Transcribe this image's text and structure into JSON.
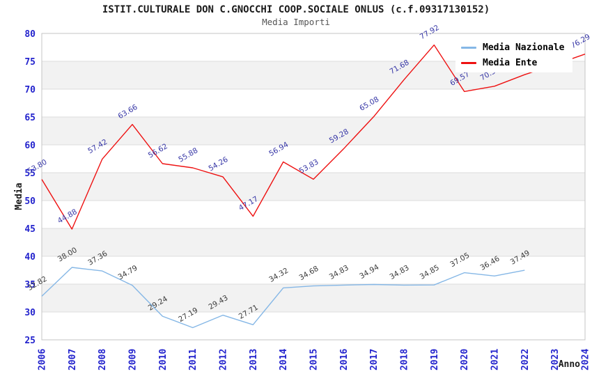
{
  "page": {
    "title": "ISTIT.CULTURALE DON C.GNOCCHI COOP.SOCIALE ONLUS (c.f.09317130152)",
    "subtitle": "Media Importi"
  },
  "legend": {
    "items": [
      {
        "label": "Media Nazionale",
        "color": "#85b7e6"
      },
      {
        "label": "Media Ente",
        "color": "#ee1111"
      }
    ]
  },
  "chart_data": {
    "type": "line",
    "title": "ISTIT.CULTURALE DON C.GNOCCHI COOP.SOCIALE ONLUS (c.f.09317130152)",
    "subtitle": "Media Importi",
    "xlabel": "Anno",
    "ylabel": "Media",
    "ylim": [
      25,
      80
    ],
    "ytick_step": 5,
    "grid": "horizontal-lines-with-alternating-bands",
    "legend_position": "top-right-inside",
    "colors": {
      "band": "#f2f2f2",
      "gridline": "#dcdcdc",
      "border": "#c4c4c4",
      "tick_label": "#2323cd"
    },
    "categories": [
      "2006",
      "2007",
      "2008",
      "2009",
      "2010",
      "2011",
      "2012",
      "2013",
      "2014",
      "2015",
      "2016",
      "2017",
      "2018",
      "2019",
      "2020",
      "2021",
      "2022",
      "2023",
      "2024"
    ],
    "series": [
      {
        "name": "Media Nazionale",
        "color": "#85b7e6",
        "label_color": "#3a3a3a",
        "values": [
          32.82,
          38.0,
          37.36,
          34.79,
          29.24,
          27.19,
          29.43,
          27.71,
          34.32,
          34.68,
          34.83,
          34.94,
          34.83,
          34.85,
          37.05,
          36.46,
          37.49
        ],
        "labels": [
          "32.82",
          "38.00",
          "37.36",
          "34.79",
          "29.24",
          "27.19",
          "29.43",
          "27.71",
          "34.32",
          "34.68",
          "34.83",
          "34.94",
          "34.83",
          "34.85",
          "37.05",
          "36.46",
          "37.49"
        ]
      },
      {
        "name": "Media Ente",
        "color": "#ee1111",
        "label_color": "#3636a6",
        "values": [
          53.8,
          44.88,
          57.42,
          63.66,
          56.62,
          55.88,
          54.26,
          47.17,
          56.94,
          53.83,
          59.28,
          65.08,
          71.68,
          77.92,
          69.57,
          70.53,
          72.6,
          74.4,
          76.29
        ],
        "labels": [
          "53.80",
          "44.88",
          "57.42",
          "63.66",
          "56.62",
          "55.88",
          "54.26",
          "47.17",
          "56.94",
          "53.83",
          "59.28",
          "65.08",
          "71.68",
          "77.92",
          "69.57",
          "70.53",
          null,
          null,
          "76.29"
        ]
      }
    ]
  }
}
